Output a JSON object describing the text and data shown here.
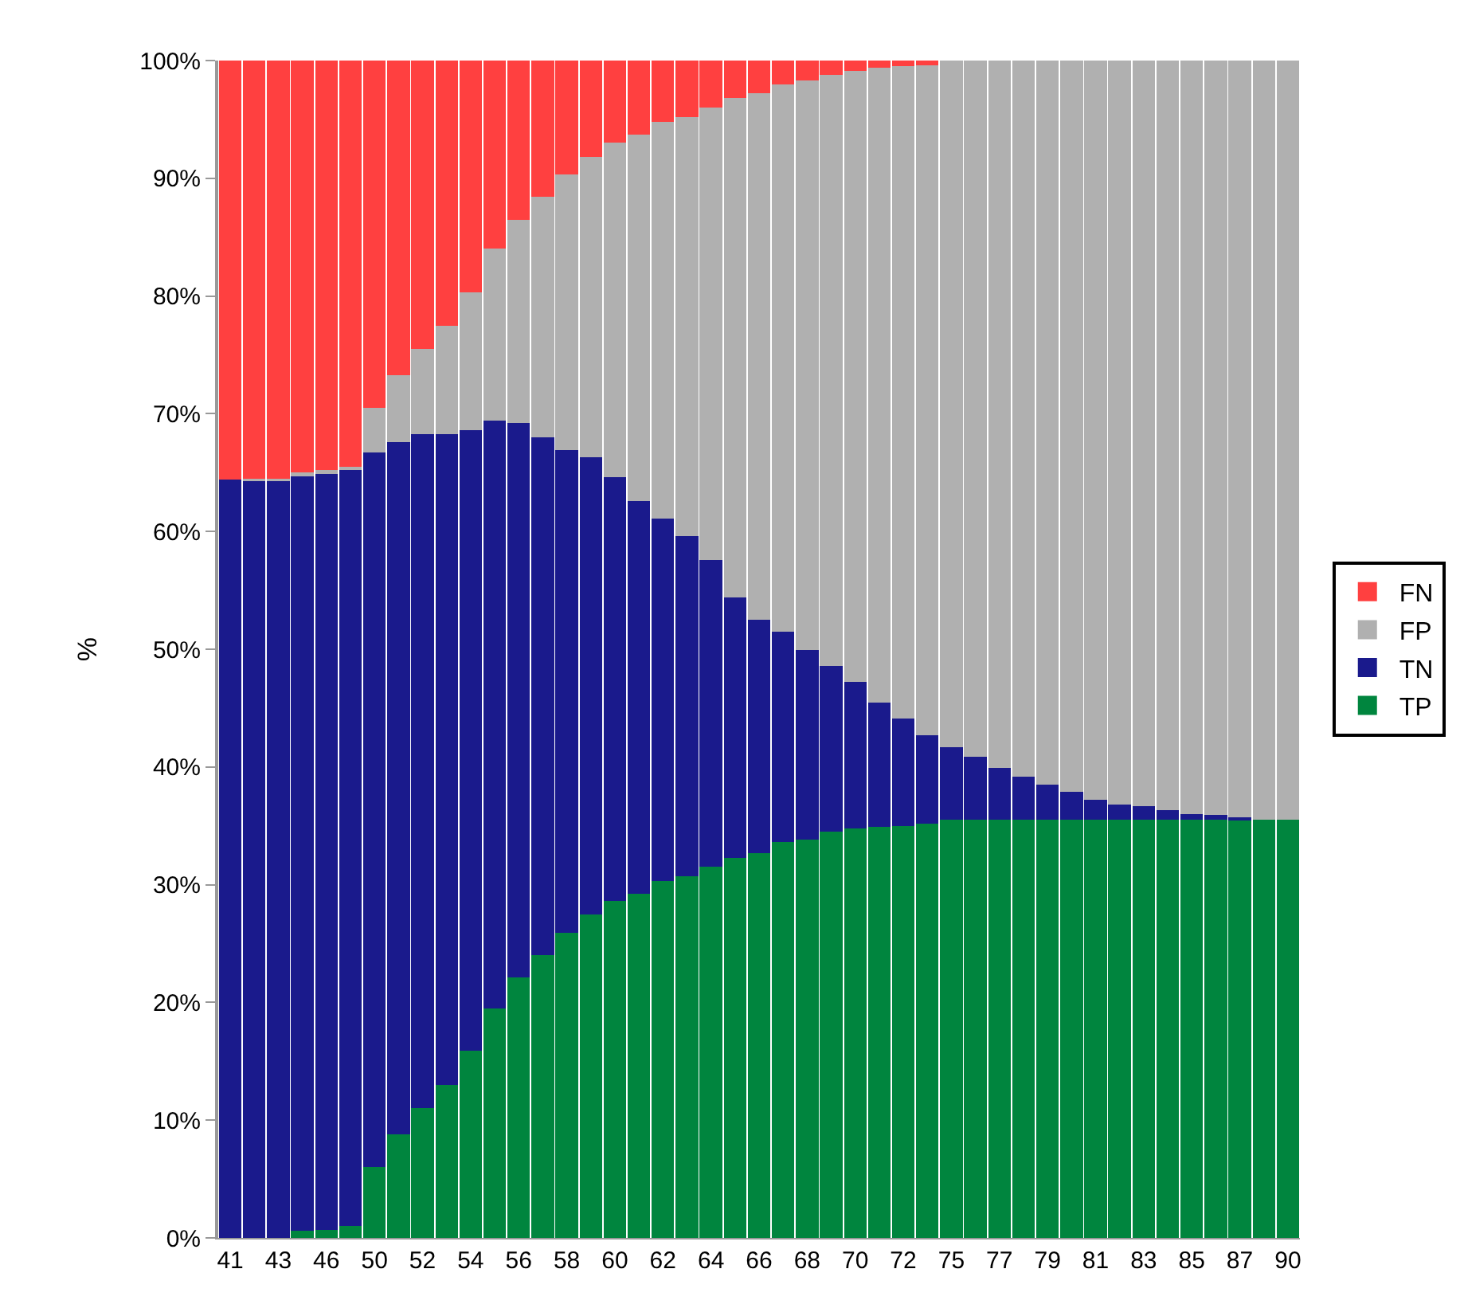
{
  "chart_data": {
    "type": "bar",
    "stacked": true,
    "ylabel": "%",
    "categories": [
      "41",
      null,
      "43",
      null,
      "46",
      null,
      "50",
      null,
      "52",
      null,
      "54",
      null,
      "56",
      null,
      "58",
      null,
      "60",
      null,
      "62",
      null,
      "64",
      null,
      "66",
      null,
      "68",
      null,
      "70",
      null,
      "72",
      null,
      "75",
      null,
      "77",
      null,
      "79",
      null,
      "81",
      null,
      "83",
      null,
      "85",
      null,
      "87",
      null,
      "90"
    ],
    "series": [
      {
        "name": "TP",
        "color": "#00853e",
        "values": [
          0,
          0,
          0,
          0.6,
          0.7,
          1.0,
          6.0,
          8.8,
          11.0,
          13.0,
          15.9,
          19.5,
          22.1,
          24.0,
          25.9,
          27.5,
          28.6,
          29.2,
          30.3,
          30.7,
          31.5,
          32.3,
          32.7,
          33.6,
          33.8,
          34.5,
          34.8,
          34.9,
          35.0,
          35.2,
          35.5,
          35.5,
          35.5,
          35.5,
          35.5,
          35.5,
          35.5,
          35.5,
          35.5,
          35.5,
          35.5,
          35.5,
          35.5,
          35.5,
          35.5
        ]
      },
      {
        "name": "TN",
        "color": "#1a1a8c",
        "values": [
          64.4,
          64.3,
          64.4,
          64.2,
          64.2,
          64.2,
          60.7,
          58.8,
          57.3,
          55.3,
          52.7,
          49.9,
          47.1,
          44.0,
          41.0,
          38.8,
          36.0,
          33.4,
          30.8,
          28.9,
          26.1,
          22.1,
          19.8,
          17.9,
          16.1,
          14.1,
          12.4,
          10.6,
          9.1,
          7.5,
          6.2,
          5.4,
          4.4,
          3.7,
          3.0,
          2.4,
          1.7,
          1.3,
          1.2,
          0.8,
          0.5,
          0.4,
          0.2,
          0,
          0
        ]
      },
      {
        "name": "FP",
        "color": "#b0b0b0",
        "values": [
          0,
          0.2,
          0.1,
          0.2,
          0.3,
          0.3,
          3.8,
          5.7,
          7.2,
          9.2,
          11.7,
          14.6,
          17.3,
          20.4,
          23.4,
          25.5,
          28.4,
          31.1,
          33.7,
          35.6,
          38.4,
          42.4,
          44.7,
          46.5,
          48.4,
          50.2,
          51.9,
          53.9,
          55.4,
          56.9,
          58.3,
          59.1,
          60.1,
          60.8,
          61.5,
          62.1,
          62.8,
          63.2,
          63.3,
          63.7,
          64.0,
          64.1,
          64.3,
          64.5,
          64.5
        ]
      },
      {
        "name": "FN",
        "color": "#ff4040",
        "values": [
          35.6,
          35.5,
          35.5,
          35.0,
          34.8,
          34.5,
          29.5,
          26.7,
          24.5,
          22.5,
          19.7,
          16.0,
          13.5,
          11.6,
          9.7,
          8.2,
          7.0,
          6.3,
          5.2,
          4.8,
          4.0,
          3.2,
          2.8,
          2.0,
          1.7,
          1.2,
          0.9,
          0.6,
          0.5,
          0.4,
          0,
          0,
          0,
          0,
          0,
          0,
          0,
          0,
          0,
          0,
          0,
          0,
          0,
          0,
          0
        ]
      }
    ],
    "ylim": [
      0,
      100
    ],
    "yticks": [
      {
        "value": 0,
        "label": "0%"
      },
      {
        "value": 10,
        "label": "10%"
      },
      {
        "value": 20,
        "label": "20%"
      },
      {
        "value": 30,
        "label": "30%"
      },
      {
        "value": 40,
        "label": "40%"
      },
      {
        "value": 50,
        "label": "50%"
      },
      {
        "value": 60,
        "label": "60%"
      },
      {
        "value": 70,
        "label": "70%"
      },
      {
        "value": 80,
        "label": "80%"
      },
      {
        "value": 90,
        "label": "90%"
      },
      {
        "value": 100,
        "label": "100%"
      }
    ],
    "legend": "right"
  }
}
